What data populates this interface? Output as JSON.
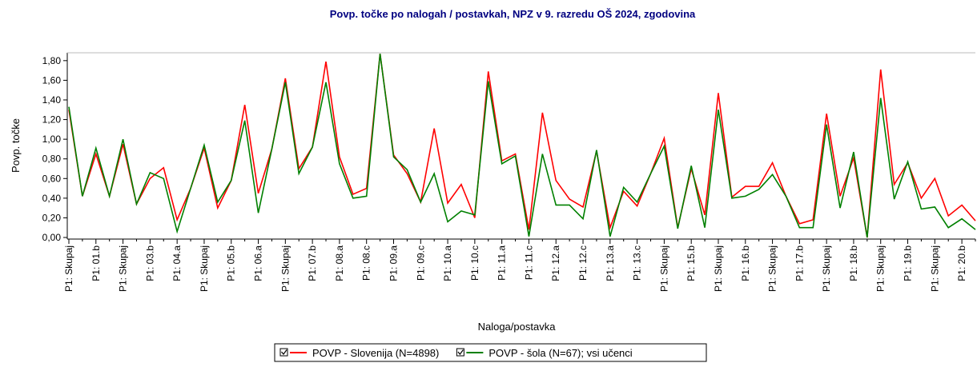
{
  "chart_data": {
    "type": "line",
    "title": "Povp. točke po nalogah / postavkah, NPZ v 9. razredu OŠ 2024, zgodovina",
    "x_label": "Naloga/postavka",
    "y_label": "Povp. točke",
    "categories": [
      "P1: Skupaj",
      null,
      "P1: 01.b",
      null,
      "P1: Skupaj",
      null,
      "P1: 03.b",
      null,
      "P1: 04.a",
      null,
      "P1: Skupaj",
      null,
      "P1: 05.b",
      null,
      "P1: 06.a",
      null,
      "P1: Skupaj",
      null,
      "P1: 07.b",
      null,
      "P1: 08.a",
      null,
      "P1: 08.c",
      null,
      "P1: 09.a",
      null,
      "P1: 09.c",
      null,
      "P1: 10.a",
      null,
      "P1: 10.c",
      null,
      "P1: 11.a",
      null,
      "P1: 11.c",
      null,
      "P1: 12.a",
      null,
      "P1: 12.c",
      null,
      "P1: 13.a",
      null,
      "P1: 13.c",
      null,
      "P1: Skupaj",
      null,
      "P1: 15.b",
      null,
      "P1: Skupaj",
      null,
      "P1: 16.b",
      null,
      "P1: Skupaj",
      null,
      "P1: 17.b",
      null,
      "P1: Skupaj",
      null,
      "P1: 18.b",
      null,
      "P1: Skupaj",
      null,
      "P1: 19.b",
      null,
      "P1: Skupaj",
      null,
      "P1: 20.b",
      null
    ],
    "series": [
      {
        "name": "POVP - Slovenija (N=4898)",
        "color": "#ff0000",
        "values": [
          1.3,
          0.42,
          0.85,
          0.42,
          0.95,
          0.34,
          0.6,
          0.71,
          0.18,
          0.5,
          0.91,
          0.3,
          0.58,
          1.35,
          0.45,
          0.9,
          1.62,
          0.7,
          0.92,
          1.79,
          0.82,
          0.44,
          0.5,
          1.87,
          0.84,
          0.65,
          0.36,
          1.11,
          0.35,
          0.54,
          0.2,
          1.69,
          0.78,
          0.85,
          0.08,
          1.27,
          0.58,
          0.39,
          0.31,
          0.88,
          0.1,
          0.47,
          0.32,
          0.65,
          1.01,
          0.1,
          0.7,
          0.23,
          1.47,
          0.41,
          0.52,
          0.52,
          0.76,
          0.42,
          0.14,
          0.18,
          1.26,
          0.42,
          0.81,
          0.0,
          1.71,
          0.54,
          0.76,
          0.4,
          0.6,
          0.22,
          0.33,
          0.17
        ]
      },
      {
        "name": "POVP - šola (N=67); vsi učenci",
        "color": "#008000",
        "values": [
          1.33,
          0.42,
          0.91,
          0.42,
          1.0,
          0.34,
          0.66,
          0.6,
          0.06,
          0.5,
          0.94,
          0.36,
          0.58,
          1.19,
          0.25,
          0.9,
          1.58,
          0.65,
          0.92,
          1.58,
          0.75,
          0.4,
          0.42,
          1.87,
          0.82,
          0.69,
          0.36,
          0.65,
          0.16,
          0.27,
          0.23,
          1.59,
          0.75,
          0.83,
          0.01,
          0.85,
          0.33,
          0.33,
          0.19,
          0.89,
          0.01,
          0.51,
          0.36,
          0.65,
          0.93,
          0.09,
          0.73,
          0.1,
          1.3,
          0.4,
          0.42,
          0.49,
          0.64,
          0.42,
          0.1,
          0.1,
          1.15,
          0.3,
          0.87,
          0.0,
          1.42,
          0.39,
          0.77,
          0.29,
          0.31,
          0.1,
          0.19,
          0.08
        ]
      }
    ],
    "ylim": [
      0,
      1.88
    ],
    "yticks": [
      {
        "value": 0,
        "label": "0,00"
      },
      {
        "value": 0.2,
        "label": "0,20"
      },
      {
        "value": 0.4,
        "label": "0,40"
      },
      {
        "value": 0.6,
        "label": "0,60"
      },
      {
        "value": 0.8,
        "label": "0,80"
      },
      {
        "value": 1.0,
        "label": "1,00"
      },
      {
        "value": 1.2,
        "label": "1,20"
      },
      {
        "value": 1.4,
        "label": "1,40"
      },
      {
        "value": 1.6,
        "label": "1,60"
      },
      {
        "value": 1.8,
        "label": "1,80"
      }
    ],
    "grid": false,
    "legend": "bottom"
  }
}
